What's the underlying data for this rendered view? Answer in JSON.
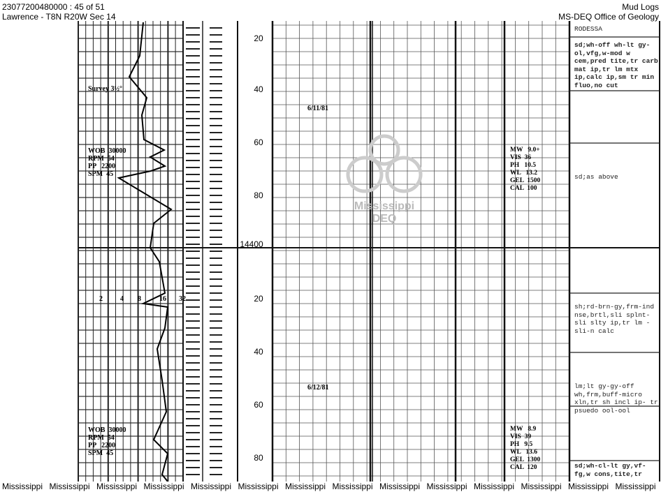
{
  "header": {
    "doc_id": "23077200480000 : 45 of 51",
    "location": "Lawrence - T8N R20W Sec 14",
    "doc_type": "Mud Logs",
    "agency": "MS-DEQ Office of Geology"
  },
  "watermark": {
    "line1": "Mississippi",
    "line2": "DEQ"
  },
  "depth_labels": [
    "20",
    "40",
    "60",
    "80",
    "14400",
    "20",
    "40",
    "60",
    "80"
  ],
  "dates": [
    "6/11/81",
    "6/12/81"
  ],
  "left_annotations": {
    "survey": "Survey 3½°",
    "params1": [
      "WOB  30000",
      "RPM  54",
      "PP   2200",
      "SPM  45"
    ],
    "scale": [
      "2",
      "4",
      "8",
      "16",
      "32"
    ],
    "params2": [
      "WOB  30000",
      "RPM  54",
      "PP   2200",
      "SPM  45"
    ]
  },
  "mud_props": [
    [
      "MW   9.0+",
      "VIS  36",
      "PH   10.5",
      "WL   13.2",
      "GEL  1500",
      "CAL  100"
    ],
    [
      "MW   8.9",
      "VIS  39",
      "PH   9.5",
      "WL   13.6",
      "GEL  1300",
      "CAL  120"
    ]
  ],
  "descriptions": [
    "RODESSA",
    "sd;wh-off wh-lt gy-ol,vfg,w-mod w cem,pred tite,tr carb mat ip,tr lm mtx ip,calc ip,sm tr min fluo,no cut",
    "sd;as above",
    "sh;rd-brn-gy,frm-ind nse,brtl,sli splnt-sli slty ip,tr lm -sli-n calc",
    "lm;lt gy-gy-off wh,frm,buff-micro xln,tr sh incl ip- tr psuedo ool-ool",
    "sd;wh-cl-lt gy,vf-fg,w cons,tite,tr"
  ],
  "footer": [
    "Mississippi",
    "Mississippi",
    "Mississippi",
    "Mississippi",
    "Mississippi",
    "Mississippi",
    "Mississippi",
    "Mississippi",
    "Mississippi",
    "Mississippi",
    "Mississippi",
    "Mississippi",
    "Mississippi",
    "Mississippi"
  ]
}
